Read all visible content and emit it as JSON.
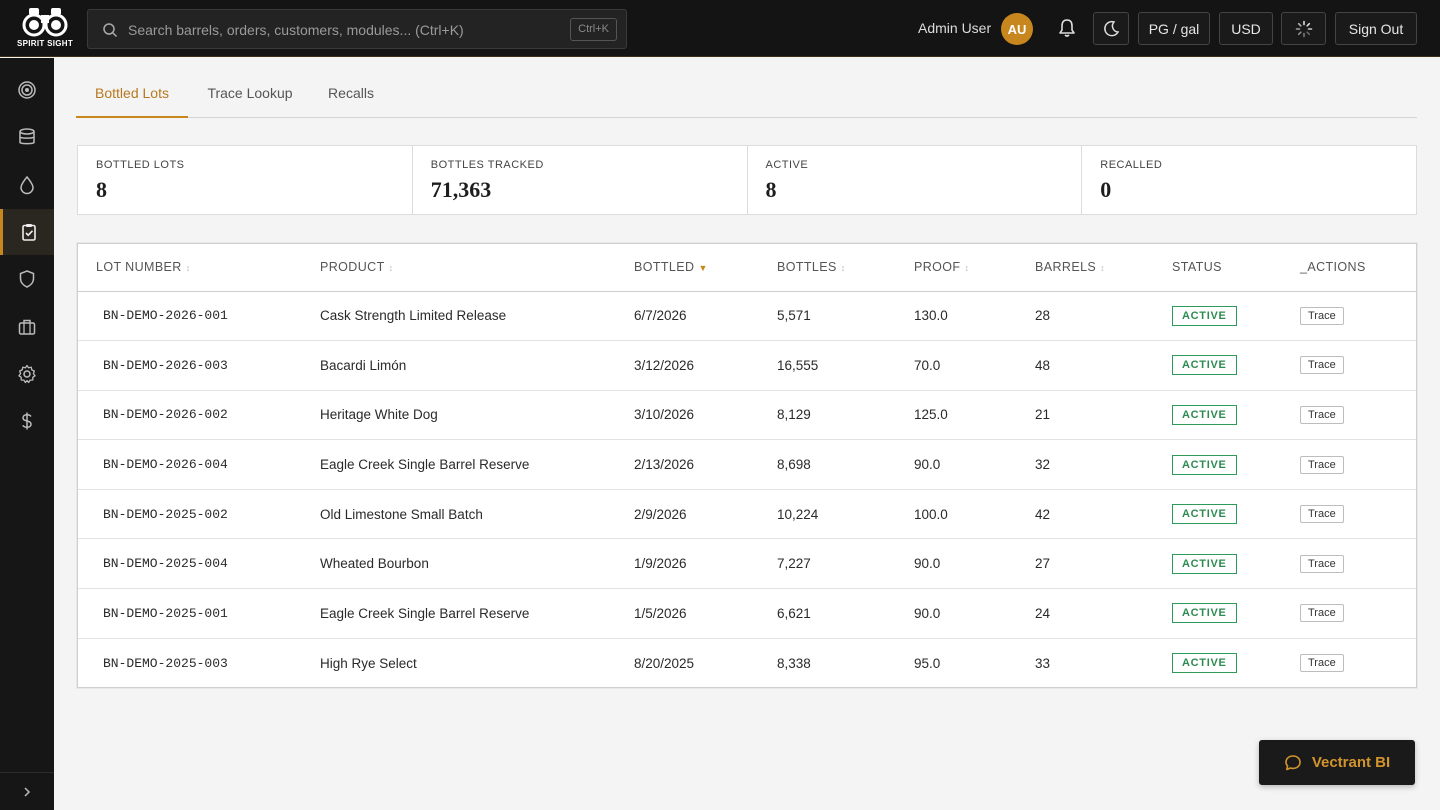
{
  "brand": {
    "logo_text": "SPIRIT SIGHT"
  },
  "search": {
    "placeholder": "Search barrels, orders, customers, modules... (Ctrl+K)",
    "shortcut": "Ctrl+K"
  },
  "user": {
    "name": "Admin User",
    "initials": "AU"
  },
  "toolbar": {
    "units_label": "PG / gal",
    "currency_label": "USD",
    "signout_label": "Sign Out"
  },
  "sidebar": {
    "items": [
      {
        "icon": "target-icon"
      },
      {
        "icon": "database-icon"
      },
      {
        "icon": "droplet-icon"
      },
      {
        "icon": "clipboard-check-icon",
        "active": true
      },
      {
        "icon": "shield-icon"
      },
      {
        "icon": "briefcase-icon"
      },
      {
        "icon": "gear-icon"
      },
      {
        "icon": "dollar-icon"
      }
    ]
  },
  "tabs": [
    {
      "label": "Bottled Lots",
      "active": true
    },
    {
      "label": "Trace Lookup"
    },
    {
      "label": "Recalls"
    }
  ],
  "stats": [
    {
      "label": "BOTTLED LOTS",
      "value": "8"
    },
    {
      "label": "BOTTLES TRACKED",
      "value": "71,363"
    },
    {
      "label": "ACTIVE",
      "value": "8"
    },
    {
      "label": "RECALLED",
      "value": "0"
    }
  ],
  "table": {
    "columns": [
      "LOT NUMBER",
      "PRODUCT",
      "BOTTLED",
      "BOTTLES",
      "PROOF",
      "BARRELS",
      "STATUS",
      "_ACTIONS"
    ],
    "rows": [
      {
        "lot": "BN-DEMO-2026-001",
        "product": "Cask Strength Limited Release",
        "bottled": "6/7/2026",
        "bottles": "5,571",
        "proof": "130.0",
        "barrels": "28",
        "status": "ACTIVE",
        "action": "Trace"
      },
      {
        "lot": "BN-DEMO-2026-003",
        "product": "Bacardi Limón",
        "bottled": "3/12/2026",
        "bottles": "16,555",
        "proof": "70.0",
        "barrels": "48",
        "status": "ACTIVE",
        "action": "Trace"
      },
      {
        "lot": "BN-DEMO-2026-002",
        "product": "Heritage White Dog",
        "bottled": "3/10/2026",
        "bottles": "8,129",
        "proof": "125.0",
        "barrels": "21",
        "status": "ACTIVE",
        "action": "Trace"
      },
      {
        "lot": "BN-DEMO-2026-004",
        "product": "Eagle Creek Single Barrel Reserve",
        "bottled": "2/13/2026",
        "bottles": "8,698",
        "proof": "90.0",
        "barrels": "32",
        "status": "ACTIVE",
        "action": "Trace"
      },
      {
        "lot": "BN-DEMO-2025-002",
        "product": "Old Limestone Small Batch",
        "bottled": "2/9/2026",
        "bottles": "10,224",
        "proof": "100.0",
        "barrels": "42",
        "status": "ACTIVE",
        "action": "Trace"
      },
      {
        "lot": "BN-DEMO-2025-004",
        "product": "Wheated Bourbon",
        "bottled": "1/9/2026",
        "bottles": "7,227",
        "proof": "90.0",
        "barrels": "27",
        "status": "ACTIVE",
        "action": "Trace"
      },
      {
        "lot": "BN-DEMO-2025-001",
        "product": "Eagle Creek Single Barrel Reserve",
        "bottled": "1/5/2026",
        "bottles": "6,621",
        "proof": "90.0",
        "barrels": "24",
        "status": "ACTIVE",
        "action": "Trace"
      },
      {
        "lot": "BN-DEMO-2025-003",
        "product": "High Rye Select",
        "bottled": "8/20/2025",
        "bottles": "8,338",
        "proof": "95.0",
        "barrels": "33",
        "status": "ACTIVE",
        "action": "Trace"
      }
    ]
  },
  "assistant": {
    "label": "Vectrant BI"
  },
  "colors": {
    "accent": "#c8861e",
    "active_status": "#2e9a5a",
    "topbar": "#141414"
  }
}
